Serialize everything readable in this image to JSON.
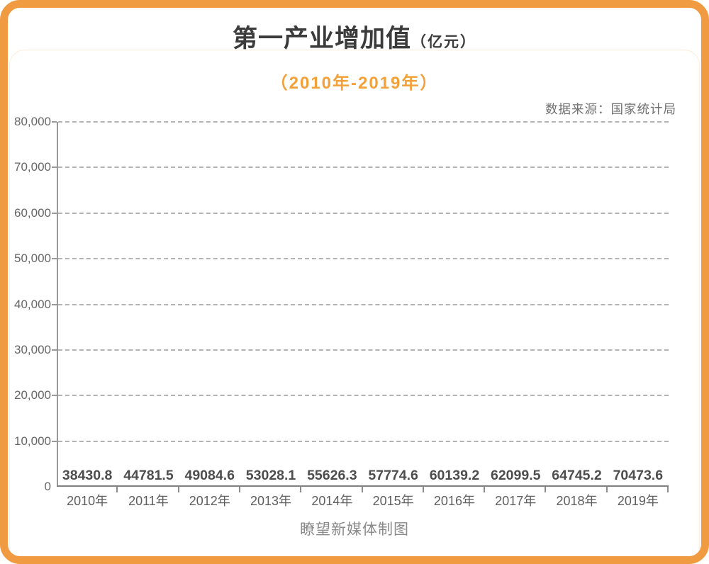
{
  "header": {
    "title": "第一产业增加值",
    "title_unit": "（亿元）",
    "subtitle": "（2010年-2019年）",
    "source": "数据来源：国家统计局"
  },
  "footer": {
    "credit": "瞭望新媒体制图"
  },
  "colors": {
    "accent_orange": "#F09A41",
    "subtitle_orange": "#F2A139",
    "title_dark": "#3B3B3B",
    "grid_gray": "#B3B3B3",
    "axis_gray": "#9A9A9A",
    "value_label_dark": "#4D4D4D",
    "tick_label_gray": "#666666",
    "footer_gray": "#8A8A8A"
  },
  "chart_data": {
    "type": "bar",
    "title": "第一产业增加值（亿元）",
    "subtitle": "（2010年-2019年）",
    "categories": [
      "2010年",
      "2011年",
      "2012年",
      "2013年",
      "2014年",
      "2015年",
      "2016年",
      "2017年",
      "2018年",
      "2019年"
    ],
    "values": [
      38430.8,
      44781.5,
      49084.6,
      53028.1,
      55626.3,
      57774.6,
      60139.2,
      62099.5,
      64745.2,
      70473.6
    ],
    "value_labels": [
      "38430.8",
      "44781.5",
      "49084.6",
      "53028.1",
      "55626.3",
      "57774.6",
      "60139.2",
      "62099.5",
      "64745.2",
      "70473.6"
    ],
    "ylim": [
      0,
      80000
    ],
    "ytick_step": 10000,
    "ytick_labels": [
      "0",
      "10,000",
      "20,000",
      "30,000",
      "40,000",
      "50,000",
      "60,000",
      "70,000",
      "80,000"
    ],
    "xlabel": "",
    "ylabel": "",
    "grid": "horizontal dashed",
    "legend": "none",
    "note": "bars drawn at zero height; value labels sit on the baseline above each category"
  }
}
